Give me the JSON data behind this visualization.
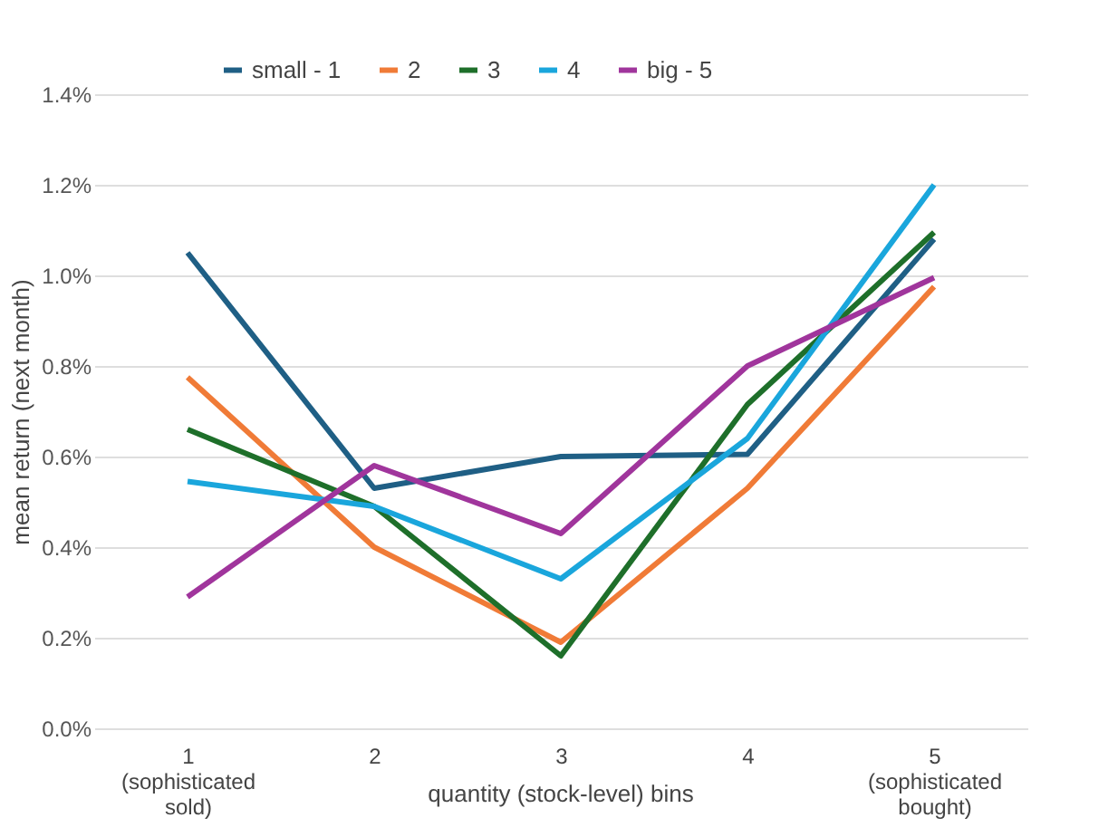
{
  "chart_data": {
    "type": "line",
    "xlabel": "quantity (stock-level) bins",
    "ylabel": "mean return (next month)",
    "categories": [
      "1 (sophisticated sold)",
      "2",
      "3",
      "4",
      "5 (sophisticated bought)"
    ],
    "ylim": [
      0,
      1.4
    ],
    "yticks": [
      {
        "value": 0,
        "label": "0.0%"
      },
      {
        "value": 0.2,
        "label": "0.2%"
      },
      {
        "value": 0.4,
        "label": "0.4%"
      },
      {
        "value": 0.6,
        "label": "0.6%"
      },
      {
        "value": 0.8,
        "label": "0.8%"
      },
      {
        "value": 1.0,
        "label": "1.0%"
      },
      {
        "value": 1.2,
        "label": "1.2%"
      },
      {
        "value": 1.4,
        "label": "1.4%"
      }
    ],
    "grid": "y",
    "legend": "top",
    "series": [
      {
        "name": "small - 1",
        "color": "#1f5f85",
        "values": [
          1.05,
          0.53,
          0.6,
          0.605,
          1.08
        ]
      },
      {
        "name": "2",
        "color": "#f07b37",
        "values": [
          0.775,
          0.4,
          0.19,
          0.53,
          0.975
        ]
      },
      {
        "name": "3",
        "color": "#1e6f2a",
        "values": [
          0.66,
          0.49,
          0.16,
          0.715,
          1.095
        ]
      },
      {
        "name": "4",
        "color": "#1aa6dc",
        "values": [
          0.545,
          0.49,
          0.33,
          0.64,
          1.2
        ]
      },
      {
        "name": "big - 5",
        "color": "#a0359c",
        "values": [
          0.29,
          0.58,
          0.43,
          0.8,
          0.995
        ]
      }
    ]
  }
}
